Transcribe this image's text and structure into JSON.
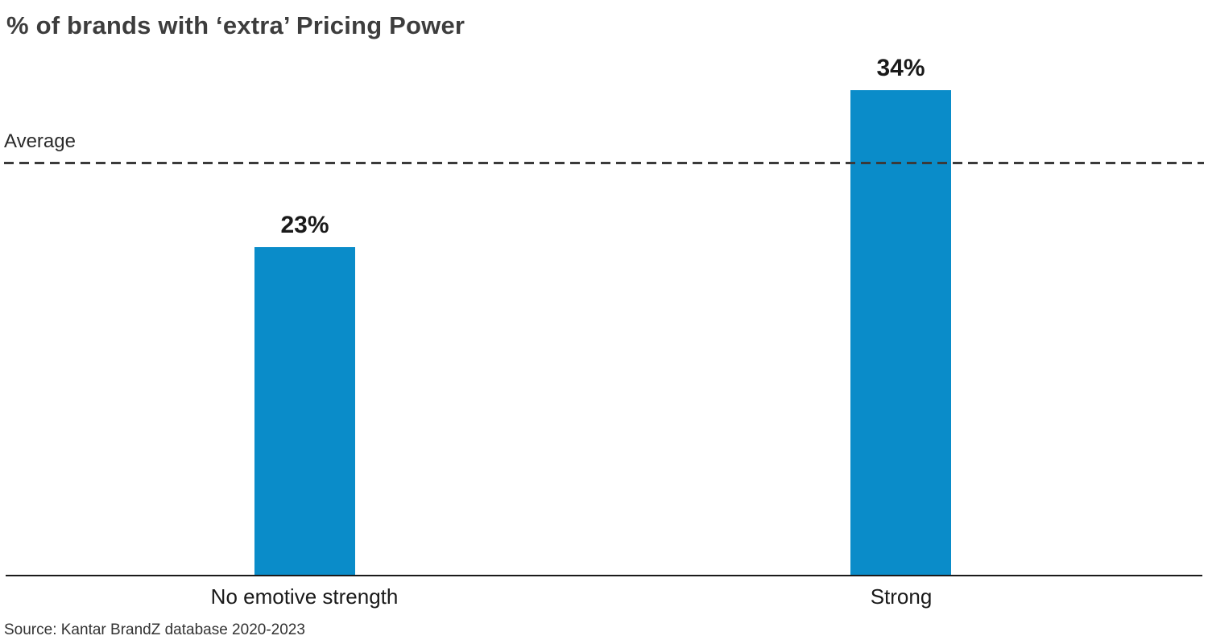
{
  "title": "% of brands with ‘extra’ Pricing Power",
  "source_note": "Source: Kantar BrandZ database 2020-2023",
  "colors": {
    "bar": "#0a8cc9",
    "title_text": "#3d3d3d",
    "label_text": "#1a1a1a",
    "dashed_line": "#3a3a3a",
    "axis_line": "#1a1a1a"
  },
  "chart_data": {
    "type": "bar",
    "title": "% of brands with ‘extra’ Pricing Power",
    "categories": [
      "No emotive strength",
      "Strong"
    ],
    "values": [
      23,
      34
    ],
    "value_labels": [
      "23%",
      "34%"
    ],
    "average_line": {
      "label": "Average",
      "estimated_value": 29
    },
    "xlabel": "",
    "ylabel": "",
    "ylim": [
      0,
      40
    ],
    "grid": false,
    "legend": false,
    "bar_color": "#0a8cc9",
    "units": "percent"
  }
}
